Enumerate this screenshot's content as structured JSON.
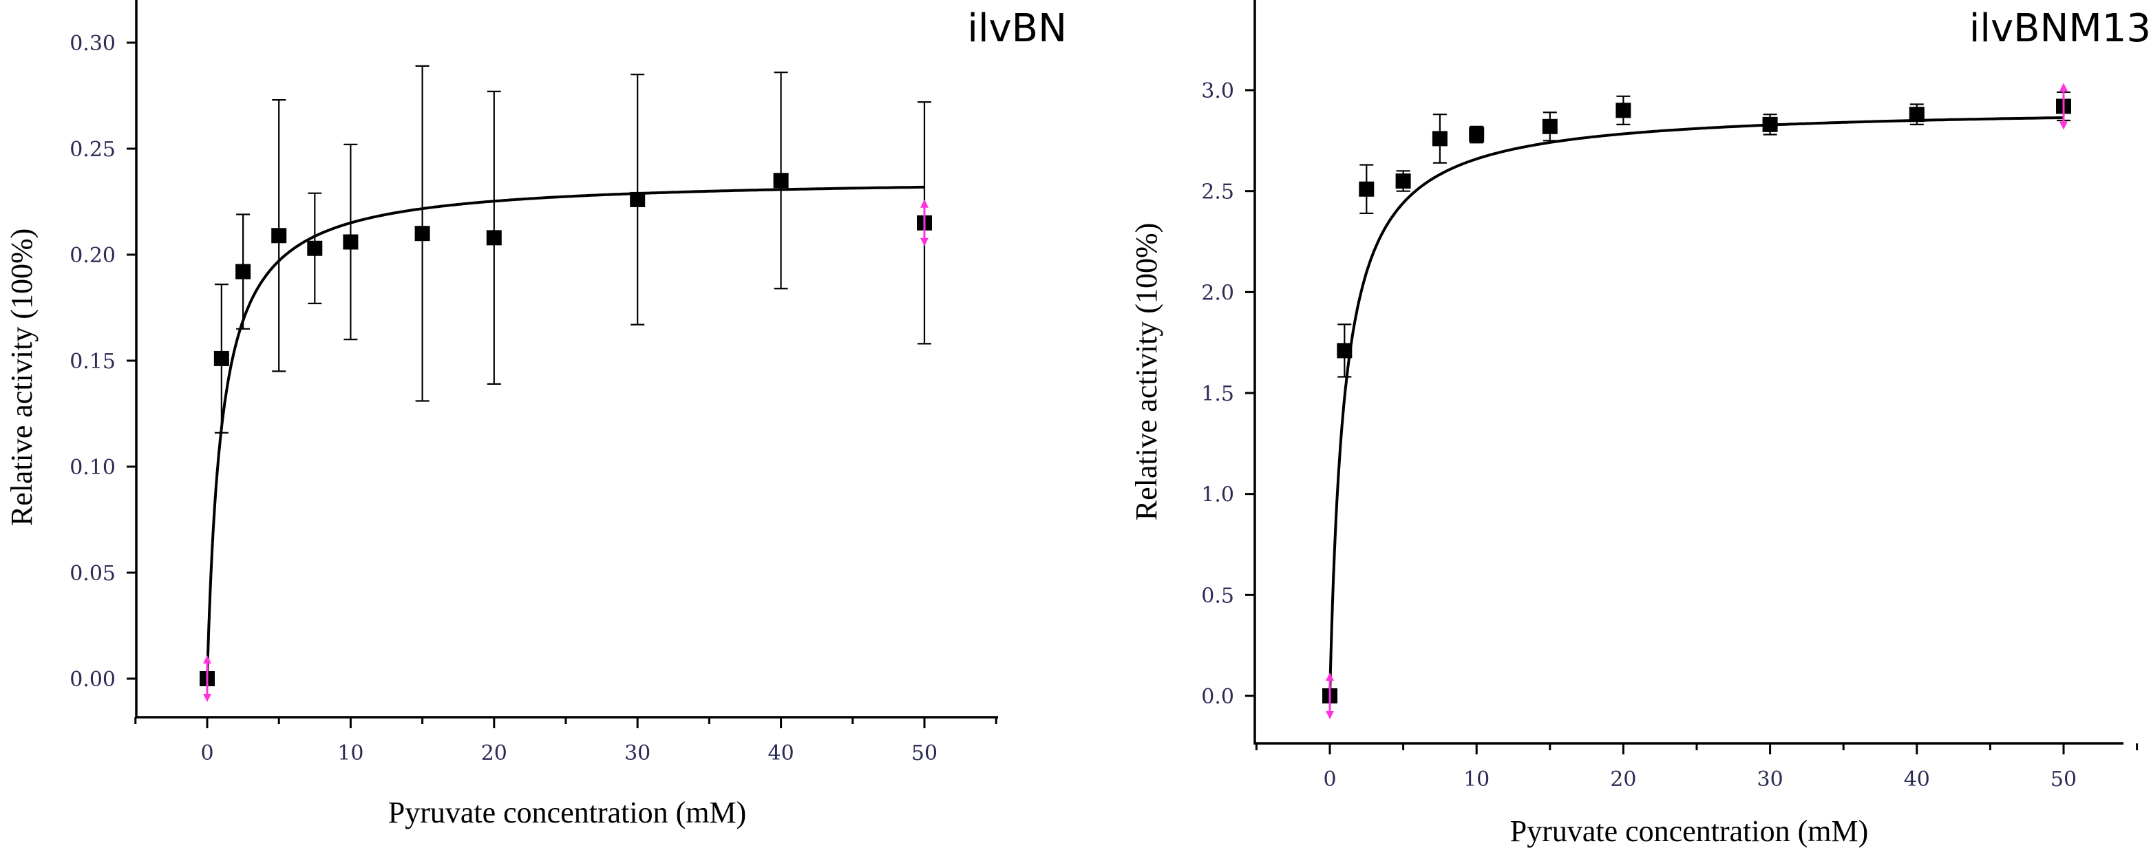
{
  "chart_data": [
    {
      "type": "scatter",
      "title": "ilvBN",
      "xlabel": "Pyruvate concentration (mM)",
      "ylabel": "Relative activity (100%)",
      "xlim": [
        -5,
        55
      ],
      "ylim": [
        -0.025,
        0.325
      ],
      "xticks": [
        0,
        10,
        20,
        30,
        40,
        50
      ],
      "xtick_labels": [
        "0",
        "10",
        "20",
        "30",
        "40",
        "50"
      ],
      "yticks": [
        0.0,
        0.05,
        0.1,
        0.15,
        0.2,
        0.25,
        0.3
      ],
      "ytick_labels": [
        "0.00",
        "0.05",
        "0.10",
        "0.15",
        "0.20",
        "0.25",
        "0.30"
      ],
      "grid": false,
      "series": [
        {
          "x": [
            0,
            1,
            2.5,
            5,
            7.5,
            10,
            15,
            20,
            30,
            40,
            50
          ],
          "y": [
            0.0,
            0.151,
            0.192,
            0.209,
            0.203,
            0.206,
            0.21,
            0.208,
            0.226,
            0.235,
            0.215
          ],
          "err": [
            0.0,
            0.035,
            0.027,
            0.064,
            0.026,
            0.046,
            0.079,
            0.069,
            0.059,
            0.051,
            0.057
          ]
        }
      ],
      "fit": {
        "model": "michaelis-menten",
        "vmax": 0.2365,
        "km": 1.0
      },
      "highlighted_points": [
        0,
        10
      ]
    },
    {
      "type": "scatter",
      "title": "ilvBNM13",
      "xlabel": "Pyruvate concentration (mM)",
      "ylabel": "Relative activity (100%)",
      "xlim": [
        -5,
        55
      ],
      "ylim": [
        -0.25,
        3.25
      ],
      "xticks": [
        0,
        10,
        20,
        30,
        40,
        50
      ],
      "xtick_labels": [
        "0",
        "10",
        "20",
        "30",
        "40",
        "50"
      ],
      "yticks": [
        0.0,
        0.5,
        1.0,
        1.5,
        2.0,
        2.5,
        3.0
      ],
      "ytick_labels": [
        "0.0",
        "0.5",
        "1.0",
        "1.5",
        "2.0",
        "2.5",
        "3.0"
      ],
      "grid": false,
      "series": [
        {
          "x": [
            0,
            1,
            2.5,
            5,
            7.5,
            10,
            15,
            20,
            30,
            40,
            50
          ],
          "y": [
            0.0,
            1.71,
            2.51,
            2.55,
            2.76,
            2.78,
            2.82,
            2.9,
            2.83,
            2.88,
            2.92
          ],
          "err": [
            0.0,
            0.13,
            0.12,
            0.05,
            0.12,
            0.04,
            0.07,
            0.07,
            0.05,
            0.05,
            0.07
          ]
        }
      ],
      "fit": {
        "model": "michaelis-menten",
        "vmax": 2.92,
        "km": 0.98
      },
      "highlighted_points": [
        0,
        10
      ]
    }
  ]
}
